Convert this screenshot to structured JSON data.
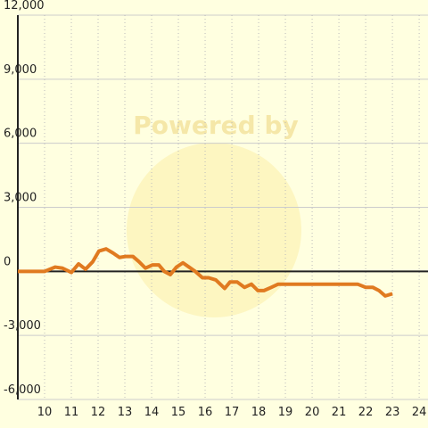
{
  "chart_data": {
    "type": "line",
    "watermark": "Powered by",
    "x": [
      9.0,
      10.0,
      10.4,
      10.67,
      11.0,
      11.27,
      11.53,
      11.8,
      12.03,
      12.3,
      12.57,
      12.8,
      13.03,
      13.3,
      13.53,
      13.77,
      14.03,
      14.27,
      14.47,
      14.7,
      14.93,
      15.17,
      15.4,
      15.63,
      15.9,
      16.13,
      16.4,
      16.73,
      16.93,
      17.2,
      17.47,
      17.73,
      17.97,
      18.2,
      18.47,
      18.73,
      19.0,
      21.7,
      22.0,
      22.27,
      22.5,
      22.73,
      23.0
    ],
    "series": [
      {
        "color": "#e07a20",
        "values": [
          0,
          0,
          200,
          150,
          -50,
          350,
          100,
          450,
          950,
          1050,
          850,
          650,
          700,
          700,
          450,
          150,
          300,
          300,
          0,
          -150,
          200,
          400,
          200,
          0,
          -300,
          -300,
          -400,
          -800,
          -500,
          -500,
          -750,
          -600,
          -900,
          -900,
          -750,
          -600,
          -600,
          -600,
          -750,
          -750,
          -900,
          -1150,
          -1050
        ]
      }
    ],
    "xlim": [
      9,
      24.33
    ],
    "xticks": [
      10,
      11,
      12,
      13,
      14,
      15,
      16,
      17,
      18,
      19,
      20,
      21,
      22,
      23,
      24
    ],
    "ylim": [
      -6000,
      12000
    ],
    "yticks": [
      {
        "value": -6000,
        "label": "-6,000"
      },
      {
        "value": -3000,
        "label": "-3,000"
      },
      0,
      {
        "value": 3000,
        "label": "3,000"
      },
      {
        "value": 6000,
        "label": "6,000"
      },
      {
        "value": 9000,
        "label": "9,000"
      },
      {
        "value": 12000,
        "label": "12,000"
      }
    ],
    "grid": true
  }
}
